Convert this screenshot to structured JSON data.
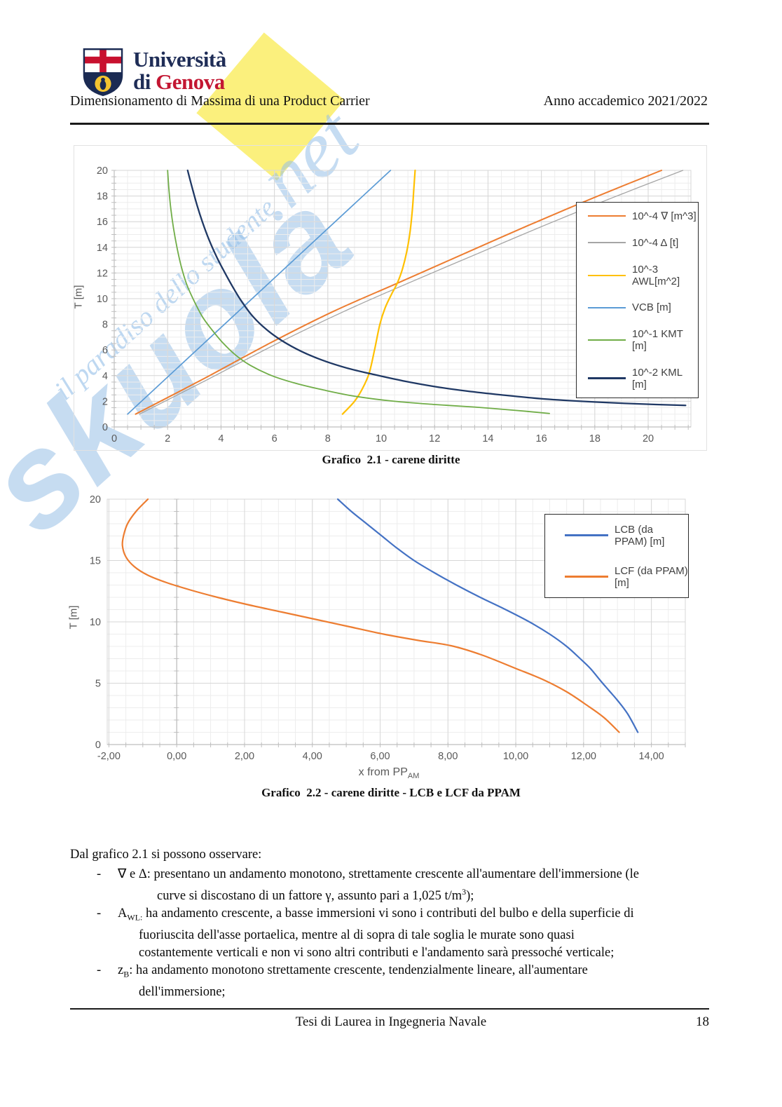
{
  "watermark": {
    "brand": "skuola",
    "suffix": ".net",
    "tagline": "il paradiso dello studente"
  },
  "header": {
    "logo_line1": "Università",
    "logo_line2_prefix": "di ",
    "logo_line2_brand": "Genova",
    "doc_title": "Dimensionamento di Massima di una Product Carrier",
    "academic_year": "Anno accademico 2021/2022"
  },
  "captions": {
    "chart1": "Grafico  2.1 - carene diritte",
    "chart2": "Grafico  2.2 - carene diritte - LCB e LCF da PPAM"
  },
  "axis_titles": {
    "chart1_y": "T [m]",
    "chart2_y": "T [m]",
    "chart2_x_main": "x from PP",
    "chart2_x_sub": "AM"
  },
  "chart_data": [
    {
      "type": "line",
      "title": "Grafico 2.1 - carene diritte",
      "xlabel": "",
      "ylabel": "T [m]",
      "xlim": [
        0,
        21.6
      ],
      "ylim": [
        0,
        20
      ],
      "grid": {
        "x_major": 2,
        "x_minor": 0.5,
        "y_major": 2,
        "y_minor": 0.5
      },
      "axis_tick_x": 0.5,
      "axis_tick_y": 0.5,
      "legend_position": "right-inside",
      "x_ticks": {
        "values": [
          0,
          2,
          4,
          6,
          8,
          10,
          12,
          14,
          16,
          18,
          20
        ],
        "labels": [
          "0",
          "2",
          "4",
          "6",
          "8",
          "10",
          "12",
          "14",
          "16",
          "18",
          "20"
        ]
      },
      "y_ticks": {
        "values": [
          0,
          2,
          4,
          6,
          8,
          10,
          12,
          14,
          16,
          18,
          20
        ],
        "labels": [
          "0",
          "2",
          "4",
          "6",
          "8",
          "10",
          "12",
          "14",
          "16",
          "18",
          "20"
        ]
      },
      "series": [
        {
          "name": "10^-4 ∇ [m^3]",
          "color": "#ED7D31",
          "width": 2,
          "points": [
            [
              0.8,
              1
            ],
            [
              3.3,
              3.7
            ],
            [
              5.8,
              6.5
            ],
            [
              8.2,
              9
            ],
            [
              10.6,
              11.2
            ],
            [
              13.1,
              13.5
            ],
            [
              15.5,
              15.7
            ],
            [
              18.0,
              17.9
            ],
            [
              20.5,
              20
            ]
          ]
        },
        {
          "name": "10^-4 Δ [t]",
          "color": "#A5A5A5",
          "width": 1.3,
          "points": [
            [
              0.95,
              1
            ],
            [
              3.5,
              3.7
            ],
            [
              6.1,
              6.5
            ],
            [
              8.6,
              9
            ],
            [
              11.0,
              11.2
            ],
            [
              13.6,
              13.5
            ],
            [
              16.1,
              15.7
            ],
            [
              18.7,
              17.9
            ],
            [
              21.3,
              20
            ]
          ]
        },
        {
          "name": "10^-3 AWL[m^2]",
          "color": "#FFC000",
          "width": 2.2,
          "points": [
            [
              8.55,
              1
            ],
            [
              9.0,
              2
            ],
            [
              9.3,
              3
            ],
            [
              9.55,
              4.2
            ],
            [
              9.75,
              6
            ],
            [
              9.95,
              8
            ],
            [
              10.15,
              9.3
            ],
            [
              10.4,
              10.4
            ],
            [
              10.6,
              11.2
            ],
            [
              10.78,
              12.2
            ],
            [
              10.95,
              13.6
            ],
            [
              11.08,
              15.2
            ],
            [
              11.17,
              17
            ],
            [
              11.22,
              18.5
            ],
            [
              11.27,
              20
            ]
          ]
        },
        {
          "name": "VCB [m]",
          "color": "#5B9BD5",
          "width": 1.7,
          "points": [
            [
              0.5,
              1
            ],
            [
              10.35,
              20
            ]
          ]
        },
        {
          "name": "10^-1 KMT [m]",
          "color": "#70AD47",
          "width": 1.8,
          "points": [
            [
              2.0,
              20
            ],
            [
              2.05,
              18.5
            ],
            [
              2.12,
              17
            ],
            [
              2.22,
              15.5
            ],
            [
              2.35,
              14
            ],
            [
              2.5,
              12.6
            ],
            [
              2.7,
              11.2
            ],
            [
              2.95,
              10
            ],
            [
              3.3,
              8.6
            ],
            [
              3.65,
              7.6
            ],
            [
              4.05,
              6.6
            ],
            [
              4.55,
              5.6
            ],
            [
              5.1,
              4.8
            ],
            [
              5.9,
              4.0
            ],
            [
              6.8,
              3.4
            ],
            [
              7.8,
              2.9
            ],
            [
              9.0,
              2.4
            ],
            [
              10.5,
              2.0
            ],
            [
              12.0,
              1.75
            ],
            [
              13.5,
              1.55
            ],
            [
              15.0,
              1.3
            ],
            [
              16.3,
              1.05
            ]
          ]
        },
        {
          "name": "10^-2 KML [m]",
          "color": "#1F3864",
          "width": 2.3,
          "points": [
            [
              2.75,
              20
            ],
            [
              2.9,
              18.8
            ],
            [
              3.1,
              17.3
            ],
            [
              3.3,
              16
            ],
            [
              3.55,
              14.6
            ],
            [
              3.85,
              13.2
            ],
            [
              4.15,
              12
            ],
            [
              4.5,
              10.7
            ],
            [
              4.8,
              9.7
            ],
            [
              5.2,
              8.6
            ],
            [
              5.7,
              7.6
            ],
            [
              6.3,
              6.7
            ],
            [
              7.0,
              5.9
            ],
            [
              7.8,
              5.2
            ],
            [
              8.7,
              4.6
            ],
            [
              9.7,
              4.1
            ],
            [
              10.8,
              3.6
            ],
            [
              12.0,
              3.15
            ],
            [
              13.2,
              2.8
            ],
            [
              14.5,
              2.5
            ],
            [
              16.0,
              2.2
            ],
            [
              17.5,
              2.0
            ],
            [
              19.0,
              1.85
            ],
            [
              20.3,
              1.75
            ],
            [
              21.4,
              1.68
            ]
          ]
        }
      ]
    },
    {
      "type": "line",
      "title": "Grafico 2.2 - carene diritte - LCB e LCF da PPAM",
      "xlabel": "x from PPAM",
      "ylabel": "T [m]",
      "xlim": [
        -2.05,
        15.0
      ],
      "ylim": [
        0,
        20
      ],
      "grid": {
        "x_major": 2,
        "x_minor": 0.5,
        "y_major": 5,
        "y_minor": 1
      },
      "axis_tick_x": 0.5,
      "axis_tick_y": 1,
      "legend_position": "right-inside",
      "x_ticks": {
        "values": [
          -2,
          0,
          2,
          4,
          6,
          8,
          10,
          12,
          14
        ],
        "labels": [
          "-2,00",
          "0,00",
          "2,00",
          "4,00",
          "6,00",
          "8,00",
          "10,00",
          "12,00",
          "14,00"
        ]
      },
      "y_ticks": {
        "values": [
          0,
          5,
          10,
          15,
          20
        ],
        "labels": [
          "0",
          "5",
          "10",
          "15",
          "20"
        ]
      },
      "series": [
        {
          "name": "LCB (da PPAM) [m]",
          "color": "#4472C4",
          "width": 2.2,
          "points": [
            [
              4.75,
              20
            ],
            [
              5.15,
              19
            ],
            [
              5.6,
              18
            ],
            [
              6.05,
              17
            ],
            [
              6.5,
              16
            ],
            [
              7.0,
              15
            ],
            [
              7.6,
              14
            ],
            [
              8.25,
              13
            ],
            [
              8.95,
              12
            ],
            [
              9.7,
              11
            ],
            [
              10.4,
              10
            ],
            [
              11.0,
              9
            ],
            [
              11.5,
              8
            ],
            [
              11.9,
              7
            ],
            [
              12.2,
              6.2
            ],
            [
              12.5,
              5.2
            ],
            [
              12.75,
              4.4
            ],
            [
              13.0,
              3.6
            ],
            [
              13.3,
              2.5
            ],
            [
              13.6,
              1.0
            ]
          ]
        },
        {
          "name": "LCF (da PPAM) [m]",
          "color": "#ED7D31",
          "width": 2.2,
          "points": [
            [
              -0.85,
              20
            ],
            [
              -1.2,
              19
            ],
            [
              -1.45,
              18
            ],
            [
              -1.57,
              17
            ],
            [
              -1.6,
              16.2
            ],
            [
              -1.5,
              15.3
            ],
            [
              -1.25,
              14.5
            ],
            [
              -0.85,
              13.8
            ],
            [
              -0.3,
              13.2
            ],
            [
              0.4,
              12.6
            ],
            [
              1.2,
              12.0
            ],
            [
              2.1,
              11.4
            ],
            [
              3.1,
              10.8
            ],
            [
              4.1,
              10.2
            ],
            [
              5.1,
              9.6
            ],
            [
              6.1,
              9.0
            ],
            [
              7.1,
              8.5
            ],
            [
              8.1,
              8.05
            ],
            [
              9.0,
              7.3
            ],
            [
              10.0,
              6.2
            ],
            [
              10.8,
              5.3
            ],
            [
              11.5,
              4.3
            ],
            [
              12.1,
              3.2
            ],
            [
              12.6,
              2.2
            ],
            [
              13.05,
              1.0
            ]
          ]
        }
      ]
    }
  ],
  "body": {
    "intro": "Dal grafico 2.1 si possono osservare:",
    "dash": "-",
    "bullets": [
      {
        "lines": [
          "∇ e Δ: presentano un andamento monotono, strettamente crescente all'aumentare dell'immersione (le",
          "curve si discostano di un fattore γ, assunto pari a 1,025 t/m^3^);"
        ]
      },
      {
        "lines": [
          "A~WL:~ ha andamento crescente, a basse immersioni vi sono i contributi del bulbo e della superficie di",
          "fuoriuscita dell'asse portaelica, mentre al di sopra di tale soglia le murate sono quasi",
          "costantemente verticali e non vi sono altri contributi e l'andamento sarà pressoché verticale;"
        ]
      },
      {
        "lines": [
          "z~B~: ha andamento monotono strettamente crescente, tendenzialmente lineare, all'aumentare",
          "dell'immersione;"
        ]
      }
    ]
  },
  "footer": {
    "text": "Tesi di Laurea in Ingegneria Navale",
    "page": "18"
  }
}
